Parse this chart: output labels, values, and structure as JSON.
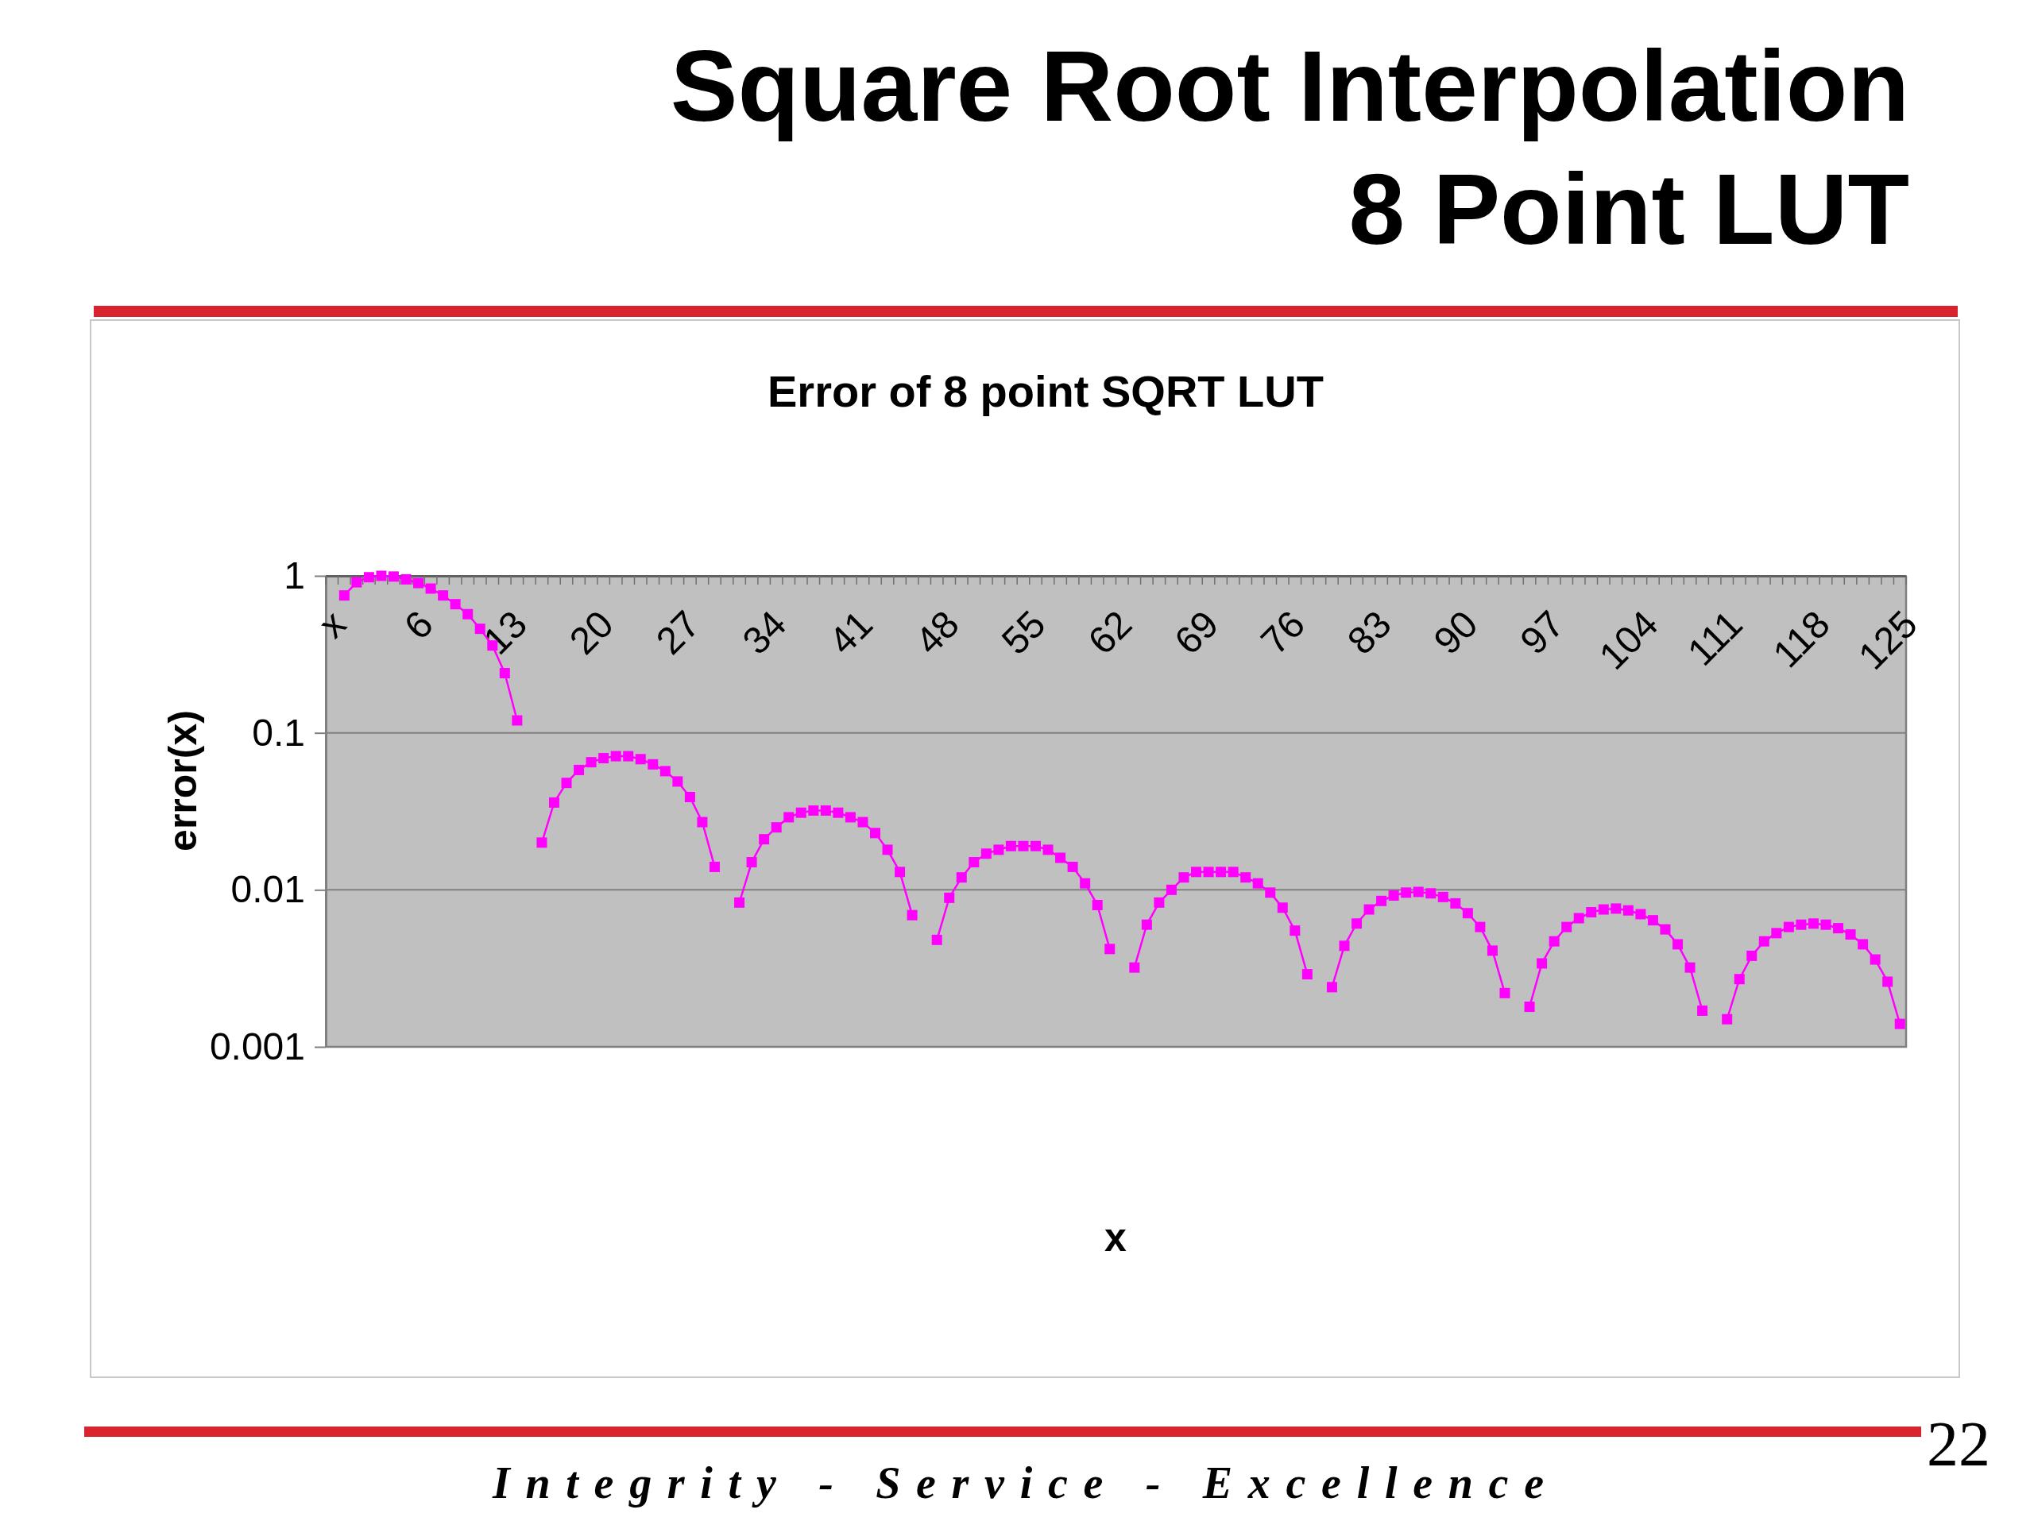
{
  "chart_data": {
    "type": "line",
    "title": "Square Root Interpolation 8 Point LUT",
    "subtitle": "Error of 8 point SQRT LUT",
    "xlabel": "x",
    "ylabel": "error(x)",
    "annotations": [
      "Integrity - Service - Excellence",
      "22"
    ],
    "categories": [
      "x",
      null,
      null,
      null,
      null,
      null,
      null,
      "6",
      null,
      null,
      null,
      null,
      null,
      null,
      "13",
      null,
      null,
      null,
      null,
      null,
      null,
      "20",
      null,
      null,
      null,
      null,
      null,
      null,
      "27",
      null,
      null,
      null,
      null,
      null,
      null,
      "34",
      null,
      null,
      null,
      null,
      null,
      null,
      "41",
      null,
      null,
      null,
      null,
      null,
      null,
      "48",
      null,
      null,
      null,
      null,
      null,
      null,
      "55",
      null,
      null,
      null,
      null,
      null,
      null,
      "62",
      null,
      null,
      null,
      null,
      null,
      null,
      "69",
      null,
      null,
      null,
      null,
      null,
      null,
      "76",
      null,
      null,
      null,
      null,
      null,
      null,
      "83",
      null,
      null,
      null,
      null,
      null,
      null,
      "90",
      null,
      null,
      null,
      null,
      null,
      null,
      "97",
      null,
      null,
      null,
      null,
      null,
      null,
      "104",
      null,
      null,
      null,
      null,
      null,
      null,
      "111",
      null,
      null,
      null,
      null,
      null,
      null,
      "118",
      null,
      null,
      null,
      null,
      null,
      null,
      "125",
      null
    ],
    "series": [
      {
        "color": "#ff00ff",
        "values": [
          null,
          0.75,
          0.91,
          0.98,
          1,
          0.99,
          0.95,
          0.9,
          0.83,
          0.75,
          0.66,
          0.57,
          0.46,
          0.36,
          0.24,
          0.12,
          null,
          0.02,
          0.036,
          0.048,
          0.058,
          0.065,
          0.069,
          0.071,
          0.071,
          0.068,
          0.063,
          0.057,
          0.049,
          0.039,
          0.027,
          0.014,
          null,
          0.0083,
          0.015,
          0.021,
          0.025,
          0.029,
          0.031,
          0.032,
          0.032,
          0.031,
          0.029,
          0.027,
          0.023,
          0.018,
          0.013,
          0.0069,
          null,
          0.0048,
          0.0089,
          0.012,
          0.015,
          0.017,
          0.018,
          0.019,
          0.019,
          0.019,
          0.018,
          0.016,
          0.014,
          0.011,
          0.008,
          0.0042,
          null,
          0.0032,
          0.006,
          0.0083,
          0.01,
          0.012,
          0.013,
          0.013,
          0.013,
          0.013,
          0.012,
          0.011,
          0.0096,
          0.0077,
          0.0055,
          0.0029,
          null,
          0.0024,
          0.0044,
          0.0061,
          0.0075,
          0.0085,
          0.0092,
          0.0096,
          0.0097,
          0.0095,
          0.009,
          0.0082,
          0.0071,
          0.0058,
          0.0041,
          0.0022,
          null,
          0.0018,
          0.0034,
          0.0047,
          0.0058,
          0.0066,
          0.0072,
          0.0075,
          0.0076,
          0.0074,
          0.007,
          0.0064,
          0.0056,
          0.0045,
          0.0032,
          0.0017,
          null,
          0.0015,
          0.0027,
          0.0038,
          0.0047,
          0.0053,
          0.0058,
          0.006,
          0.0061,
          0.006,
          0.0057,
          0.0052,
          0.0045,
          0.0036,
          0.0026,
          0.0014
        ]
      }
    ],
    "ylim": [
      0.001,
      1
    ],
    "yticks": [
      0.001,
      0.01,
      0.1,
      1
    ],
    "log": true,
    "grid": "y",
    "marker": "square",
    "line_style": "solid"
  }
}
